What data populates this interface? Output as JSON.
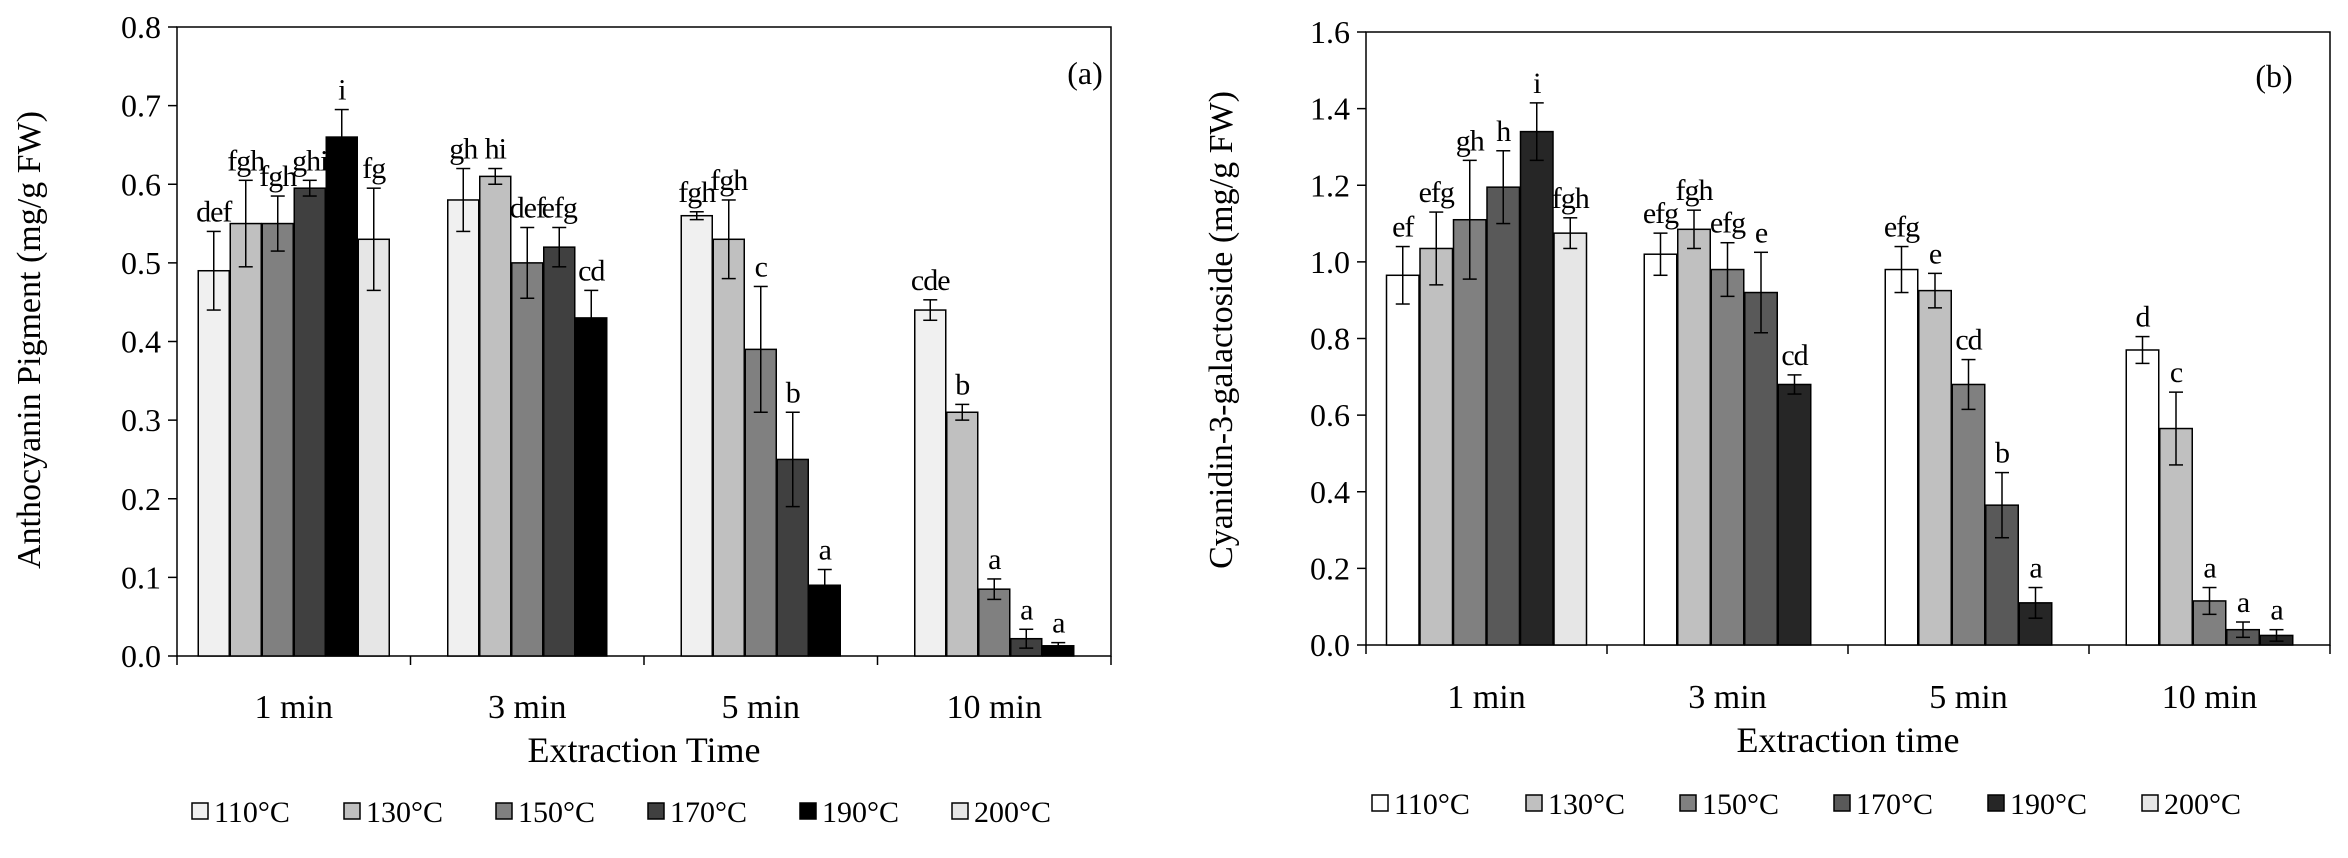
{
  "legend_series": [
    "110°C",
    "130°C",
    "150°C",
    "170°C",
    "190°C",
    "200°C"
  ],
  "series_colors_a": [
    "#f0f0f0",
    "#c0c0c0",
    "#808080",
    "#404040",
    "#000000",
    "#e6e6e6"
  ],
  "series_colors_b": [
    "#ffffff",
    "#c0c0c0",
    "#808080",
    "#595959",
    "#262626",
    "#e6e6e6"
  ],
  "chart_data": [
    {
      "type": "bar",
      "panel_label": "(a)",
      "title": "",
      "xlabel": "Extraction Time",
      "ylabel": "Anthocyanin Pigment (mg/g FW)",
      "categories": [
        "1 min",
        "3 min",
        "5 min",
        "10 min"
      ],
      "ylim": [
        0,
        0.8
      ],
      "yticks": [
        "0.0",
        "0.1",
        "0.2",
        "0.3",
        "0.4",
        "0.5",
        "0.6",
        "0.7",
        "0.8"
      ],
      "grid": false,
      "legend_position": "bottom",
      "series": [
        {
          "name": "110°C",
          "values": [
            0.49,
            0.58,
            0.56,
            0.44
          ],
          "errors": [
            0.05,
            0.04,
            0.005,
            0.013
          ],
          "labels": [
            "def",
            "gh",
            "fgh",
            "cde"
          ]
        },
        {
          "name": "130°C",
          "values": [
            0.55,
            0.61,
            0.53,
            0.31
          ],
          "errors": [
            0.055,
            0.01,
            0.05,
            0.01
          ],
          "labels": [
            "fgh",
            "hi",
            "fgh",
            "b"
          ]
        },
        {
          "name": "150°C",
          "values": [
            0.55,
            0.5,
            0.39,
            0.085
          ],
          "errors": [
            0.035,
            0.045,
            0.08,
            0.013
          ],
          "labels": [
            "fgh",
            "def",
            "c",
            "a"
          ]
        },
        {
          "name": "170°C",
          "values": [
            0.595,
            0.52,
            0.25,
            0.022
          ],
          "errors": [
            0.01,
            0.025,
            0.06,
            0.012
          ],
          "labels": [
            "ghi",
            "efg",
            "b",
            "a"
          ]
        },
        {
          "name": "190°C",
          "values": [
            0.66,
            0.43,
            0.09,
            0.013
          ],
          "errors": [
            0.035,
            0.035,
            0.02,
            0.004
          ],
          "labels": [
            "i",
            "cd",
            "a",
            "a"
          ]
        },
        {
          "name": "200°C",
          "values": [
            0.53,
            null,
            null,
            null
          ],
          "errors": [
            0.065,
            null,
            null,
            null
          ],
          "labels": [
            "fg",
            null,
            null,
            null
          ]
        }
      ]
    },
    {
      "type": "bar",
      "panel_label": "(b)",
      "title": "",
      "xlabel": "Extraction time",
      "ylabel": "Cyanidin-3-galactoside (mg/g FW)",
      "categories": [
        "1 min",
        "3 min",
        "5 min",
        "10 min"
      ],
      "ylim": [
        0,
        1.6
      ],
      "yticks": [
        "0.0",
        "0.2",
        "0.4",
        "0.6",
        "0.8",
        "1.0",
        "1.2",
        "1.4",
        "1.6"
      ],
      "grid": false,
      "legend_position": "bottom",
      "series": [
        {
          "name": "110°C",
          "values": [
            0.965,
            1.02,
            0.98,
            0.77
          ],
          "errors": [
            0.075,
            0.055,
            0.06,
            0.035
          ],
          "labels": [
            "ef",
            "efg",
            "efg",
            "d"
          ]
        },
        {
          "name": "130°C",
          "values": [
            1.035,
            1.085,
            0.925,
            0.565
          ],
          "errors": [
            0.095,
            0.05,
            0.045,
            0.095
          ],
          "labels": [
            "efg",
            "fgh",
            "e",
            "c"
          ]
        },
        {
          "name": "150°C",
          "values": [
            1.11,
            0.98,
            0.68,
            0.115
          ],
          "errors": [
            0.155,
            0.07,
            0.065,
            0.035
          ],
          "labels": [
            "gh",
            "efg",
            "cd",
            "a"
          ]
        },
        {
          "name": "170°C",
          "values": [
            1.195,
            0.92,
            0.365,
            0.04
          ],
          "errors": [
            0.095,
            0.105,
            0.085,
            0.02
          ],
          "labels": [
            "h",
            "e",
            "b",
            "a"
          ]
        },
        {
          "name": "190°C",
          "values": [
            1.34,
            0.68,
            0.11,
            0.025
          ],
          "errors": [
            0.075,
            0.025,
            0.04,
            0.015
          ],
          "labels": [
            "i",
            "cd",
            "a",
            "a"
          ]
        },
        {
          "name": "200°C",
          "values": [
            1.075,
            null,
            null,
            null
          ],
          "errors": [
            0.04,
            null,
            null,
            null
          ],
          "labels": [
            "fgh",
            null,
            null,
            null
          ]
        }
      ]
    }
  ]
}
